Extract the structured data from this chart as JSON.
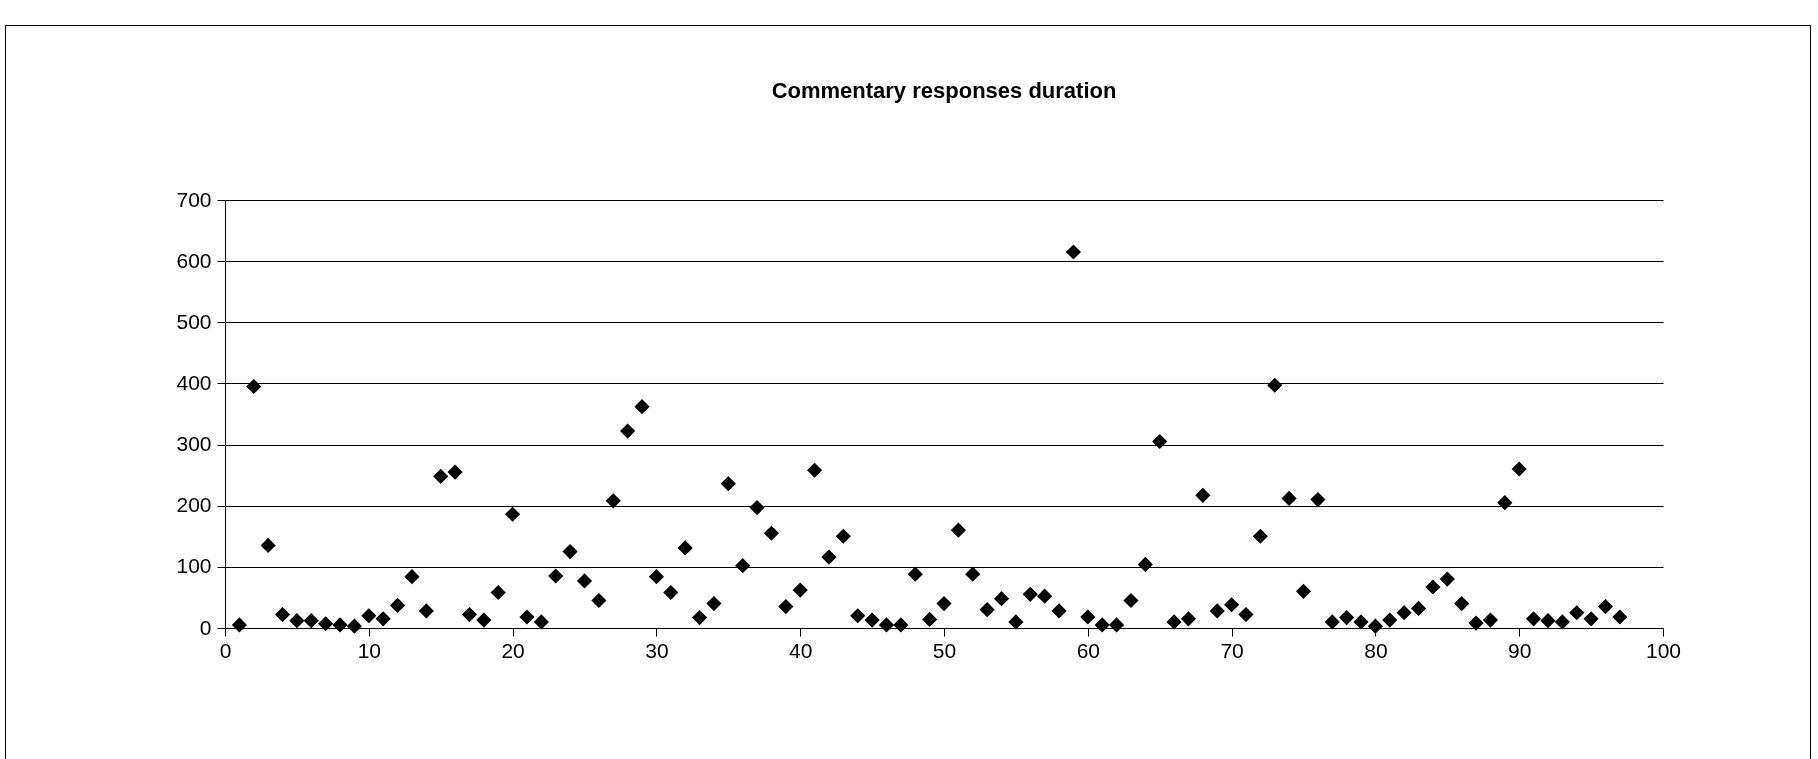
{
  "chart_data": {
    "type": "scatter",
    "title": "Commentary responses duration",
    "x": [
      1,
      2,
      3,
      4,
      5,
      6,
      7,
      8,
      9,
      10,
      11,
      12,
      13,
      14,
      15,
      16,
      17,
      18,
      19,
      20,
      21,
      22,
      23,
      24,
      25,
      26,
      27,
      28,
      29,
      30,
      31,
      32,
      33,
      34,
      35,
      36,
      37,
      38,
      39,
      40,
      41,
      42,
      43,
      44,
      45,
      46,
      47,
      48,
      49,
      50,
      51,
      52,
      53,
      54,
      55,
      56,
      57,
      58,
      59,
      60,
      61,
      62,
      63,
      64,
      65,
      66,
      67,
      68,
      69,
      70,
      71,
      72,
      73,
      74,
      75,
      76,
      77,
      78,
      79,
      80,
      81,
      82,
      83,
      84,
      85,
      86,
      87,
      88,
      89,
      90,
      91,
      92,
      93,
      94,
      95,
      96,
      97
    ],
    "series": [
      {
        "color": "#000000",
        "values": [
          5,
          395,
          135,
          22,
          12,
          12,
          7,
          5,
          3,
          20,
          15,
          37,
          84,
          28,
          248,
          255,
          22,
          13,
          58,
          186,
          18,
          10,
          85,
          125,
          77,
          45,
          208,
          322,
          362,
          84,
          58,
          131,
          17,
          40,
          236,
          102,
          197,
          155,
          35,
          62,
          258,
          116,
          150,
          20,
          13,
          5,
          5,
          88,
          14,
          40,
          160,
          88,
          30,
          48,
          10,
          55,
          52,
          28,
          615,
          18,
          5,
          5,
          45,
          104,
          305,
          10,
          15,
          217,
          28,
          38,
          22,
          150,
          397,
          212,
          60,
          210,
          10,
          17,
          10,
          3,
          13,
          25,
          32,
          67,
          80,
          40,
          8,
          13,
          205,
          260,
          15,
          12,
          10,
          25,
          15,
          35,
          18
        ]
      }
    ],
    "xlim": [
      0,
      100
    ],
    "xticks": [
      0,
      10,
      20,
      30,
      40,
      50,
      60,
      70,
      80,
      90,
      100
    ],
    "ylim": [
      0,
      700
    ],
    "yticks": [
      0,
      100,
      200,
      300,
      400,
      500,
      600,
      700
    ],
    "grid": "y",
    "marker": "diamond"
  }
}
